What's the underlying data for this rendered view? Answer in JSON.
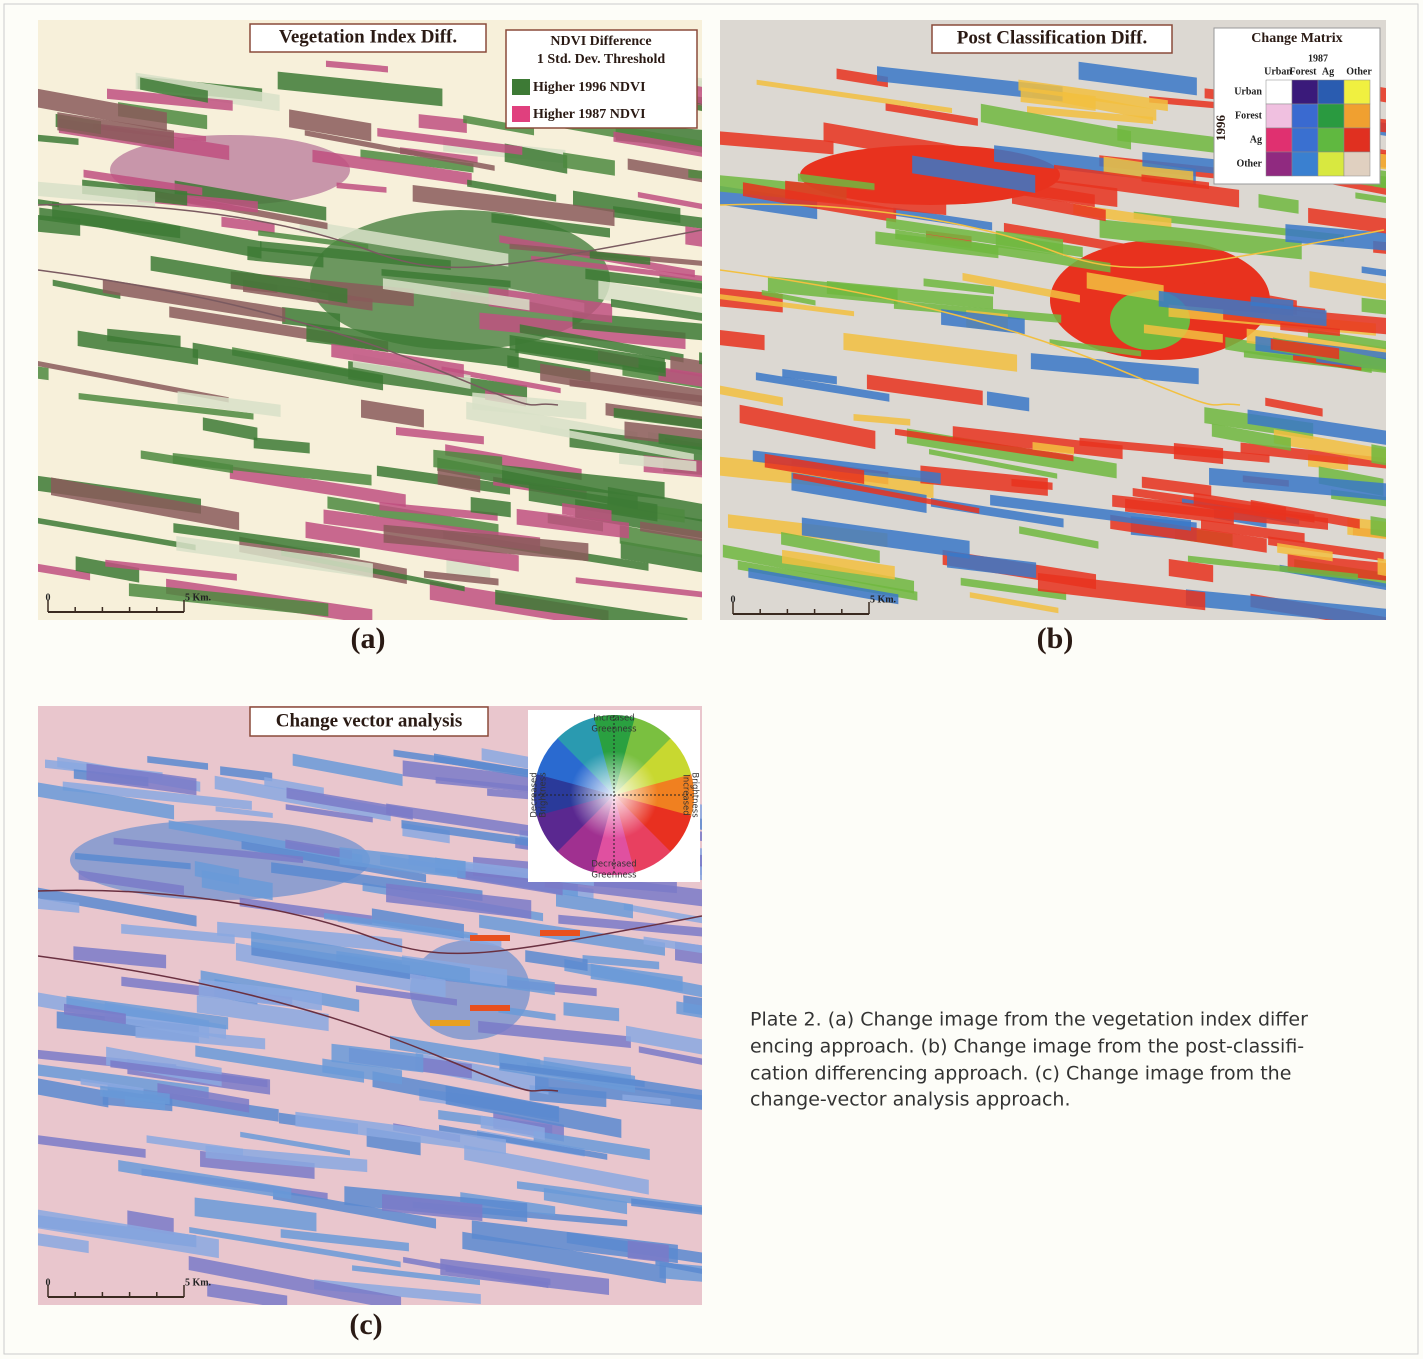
{
  "panels": [
    {
      "label": "(a)",
      "title": "Vegetation Index Diff.",
      "legend": {
        "title": [
          "NDVI Difference",
          "1 Std. Dev. Threshold"
        ],
        "items": [
          "Higher 1996 NDVI",
          "Higher 1987 NDVI"
        ]
      },
      "scale": [
        "0",
        "5 Km."
      ]
    },
    {
      "label": "(b)",
      "title": "Post Classification Diff.",
      "change_matrix": {
        "title": "Change Matrix",
        "column_axis": "1987",
        "columns": [
          "Urban",
          "Forest",
          "Ag",
          "Other"
        ],
        "row_axis": "1996",
        "rows": [
          "Urban",
          "Forest",
          "Ag",
          "Other"
        ]
      },
      "scale": [
        "0",
        "5 Km."
      ]
    },
    {
      "label": "(c)",
      "title": "Change vector analysis",
      "color_wheel": {
        "top": [
          "Increased",
          "Greenness"
        ],
        "bottom": [
          "Decreased",
          "Greenness"
        ],
        "right": [
          "Increased",
          "Brightness"
        ],
        "left": [
          "Decreased",
          "Brightness"
        ]
      },
      "scale": [
        "0",
        "5 Km."
      ]
    }
  ],
  "caption": [
    "Plate 2. (a) Change image from the vegetation index differ",
    "encing approach. (b) Change image from the post-classifi-",
    "cation differencing approach. (c) Change image from the",
    "change-vector analysis approach."
  ]
}
